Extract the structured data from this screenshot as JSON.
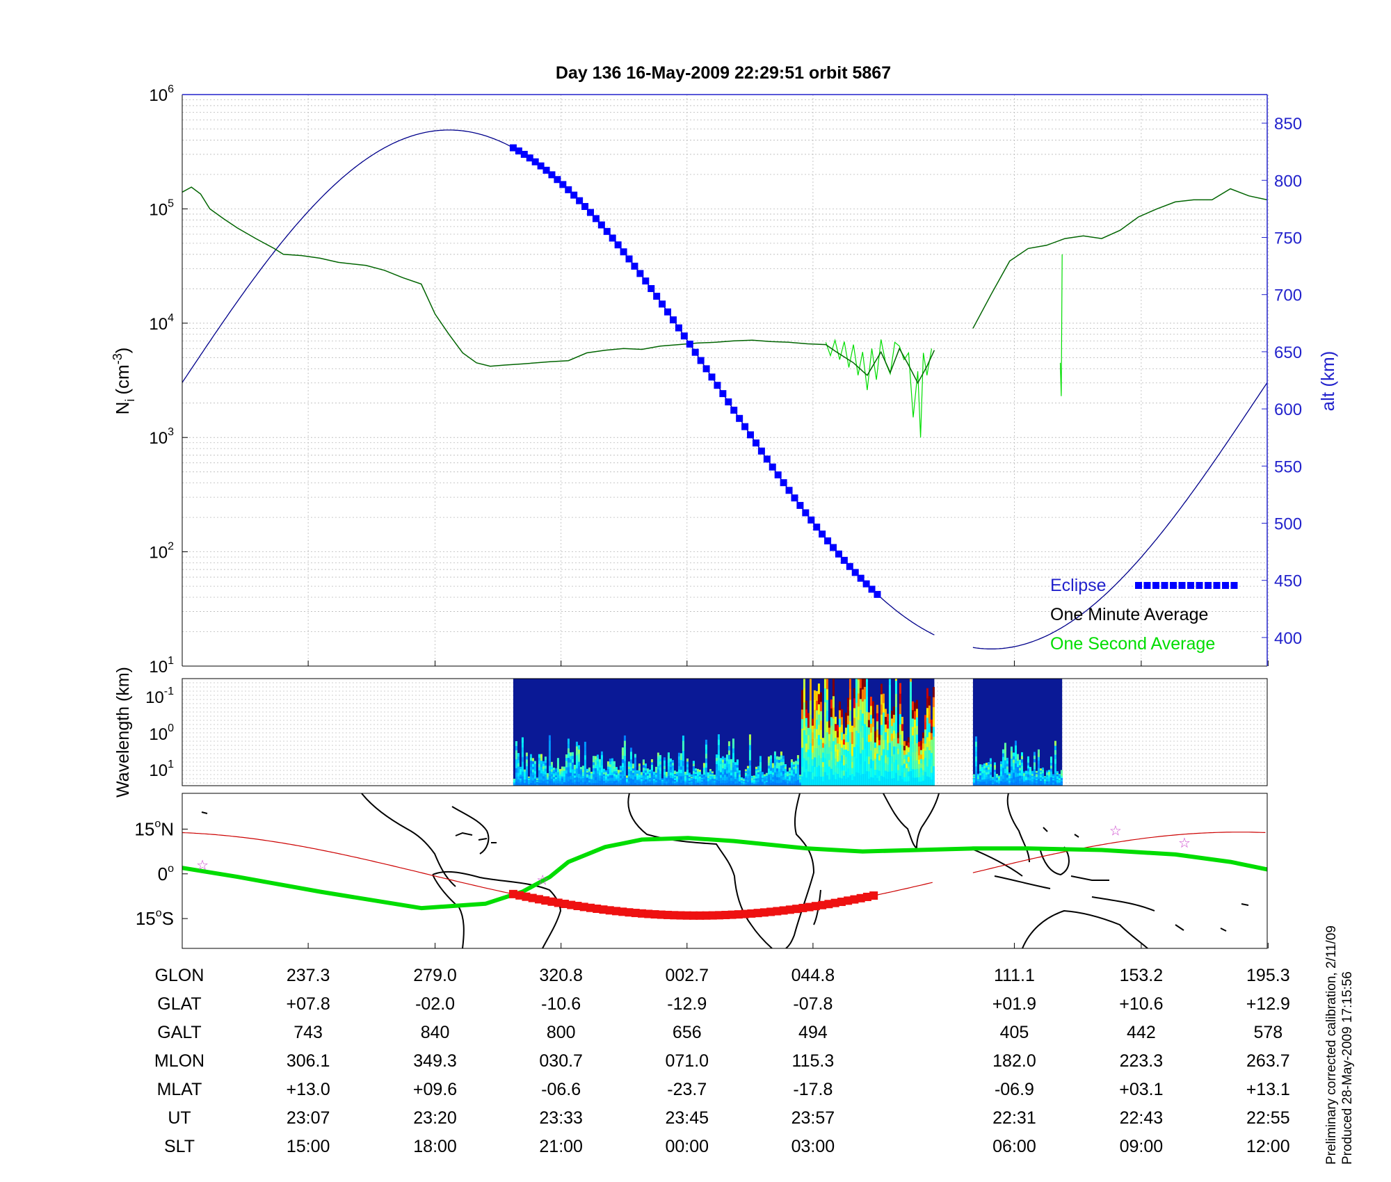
{
  "chart_data": [
    {
      "type": "line",
      "title": "Day 136  16-May-2009 22:29:51   orbit 5867",
      "ylabel_left": "N",
      "ylabel_left_sub": "i",
      "ylabel_left_unit": "(cm",
      "ylabel_left_unit_sup": "-3",
      "ylabel_left_unit_close": ")",
      "ylabel_right": "alt (km)",
      "y_scale": "log",
      "ylim": [
        10,
        1000000
      ],
      "y_ticks": [
        {
          "base": "10",
          "exp": "1",
          "value": 10
        },
        {
          "base": "10",
          "exp": "2",
          "value": 100
        },
        {
          "base": "10",
          "exp": "3",
          "value": 1000
        },
        {
          "base": "10",
          "exp": "4",
          "value": 10000
        },
        {
          "base": "10",
          "exp": "5",
          "value": 100000
        },
        {
          "base": "10",
          "exp": "6",
          "value": 1000000
        }
      ],
      "y2lim": [
        375,
        875
      ],
      "y2_ticks": [
        "400",
        "450",
        "500",
        "550",
        "600",
        "650",
        "700",
        "750",
        "800",
        "850"
      ],
      "grid": true,
      "legend_position": "bottom-right",
      "legend": [
        {
          "label": "Eclipse",
          "color": "#0000ff"
        },
        {
          "label": "One Minute Average",
          "color": "#000000"
        },
        {
          "label": "One Second Average",
          "color": "#00dd00"
        }
      ],
      "series": [
        {
          "name": "One Minute Average",
          "color": "#006400",
          "segments": [
            [
              [
                0,
                140000
              ],
              [
                10,
                155000
              ],
              [
                20,
                135000
              ],
              [
                30,
                100000
              ],
              [
                45,
                82000
              ],
              [
                60,
                68000
              ],
              [
                80,
                55000
              ],
              [
                100,
                45000
              ],
              [
                110,
                40000
              ],
              [
                130,
                39000
              ],
              [
                150,
                37000
              ],
              [
                170,
                34000
              ],
              [
                200,
                32000
              ],
              [
                220,
                29000
              ],
              [
                240,
                25000
              ],
              [
                260,
                22000
              ],
              [
                275,
                12000
              ],
              [
                290,
                8000
              ],
              [
                305,
                5500
              ],
              [
                320,
                4500
              ],
              [
                335,
                4200
              ],
              [
                350,
                4300
              ],
              [
                370,
                4400
              ],
              [
                400,
                4600
              ],
              [
                420,
                4700
              ],
              [
                440,
                5500
              ],
              [
                460,
                5800
              ],
              [
                480,
                6000
              ],
              [
                500,
                5900
              ],
              [
                520,
                6300
              ],
              [
                540,
                6500
              ],
              [
                560,
                6700
              ],
              [
                580,
                6800
              ],
              [
                600,
                7000
              ],
              [
                620,
                7100
              ],
              [
                640,
                6900
              ],
              [
                660,
                6800
              ],
              [
                680,
                6600
              ],
              [
                700,
                6500
              ],
              [
                710,
                5700
              ],
              [
                730,
                4500
              ],
              [
                745,
                3500
              ],
              [
                760,
                5600
              ],
              [
                770,
                3700
              ],
              [
                780,
                6000
              ],
              [
                790,
                4300
              ],
              [
                800,
                3000
              ],
              [
                810,
                4200
              ],
              [
                818,
                5800
              ]
            ],
            [
              [
                860,
                9000
              ],
              [
                880,
                18000
              ],
              [
                900,
                35000
              ],
              [
                920,
                45000
              ],
              [
                940,
                48000
              ],
              [
                960,
                55000
              ],
              [
                980,
                58000
              ],
              [
                1000,
                55000
              ],
              [
                1020,
                65000
              ],
              [
                1040,
                85000
              ],
              [
                1060,
                100000
              ],
              [
                1080,
                115000
              ],
              [
                1100,
                120000
              ],
              [
                1120,
                120000
              ],
              [
                1140,
                150000
              ],
              [
                1160,
                130000
              ],
              [
                1180,
                120000
              ]
            ]
          ]
        },
        {
          "name": "One Second Average",
          "color": "#00dd00",
          "segments": [
            [
              [
                700,
                6800
              ],
              [
                705,
                5200
              ],
              [
                710,
                7100
              ],
              [
                715,
                4800
              ],
              [
                720,
                6900
              ],
              [
                725,
                4100
              ],
              [
                730,
                6500
              ],
              [
                735,
                3500
              ],
              [
                740,
                5600
              ],
              [
                745,
                2600
              ],
              [
                750,
                6000
              ],
              [
                755,
                3200
              ],
              [
                760,
                7200
              ],
              [
                765,
                4500
              ],
              [
                770,
                3600
              ],
              [
                775,
                6800
              ],
              [
                780,
                6300
              ],
              [
                785,
                4800
              ],
              [
                790,
                5500
              ],
              [
                795,
                1500
              ],
              [
                800,
                3800
              ],
              [
                803,
                1000
              ],
              [
                806,
                5500
              ],
              [
                810,
                3500
              ],
              [
                815,
                6000
              ]
            ],
            [
              [
                955,
                4500
              ],
              [
                956,
                2300
              ],
              [
                957,
                40000
              ]
            ]
          ]
        },
        {
          "name": "alt (km)",
          "color": "#00008b",
          "axis": "right",
          "x_span": [
            0,
            1180
          ],
          "phase_peak_x": 290,
          "period_x": 1180,
          "alt_mid": 617,
          "alt_amp": 227,
          "gap_x": [
            818,
            860
          ]
        }
      ],
      "eclipse_x": [
        360,
        758
      ],
      "x_labels": {
        "rows": [
          "GLON",
          "GLAT",
          "GALT",
          "MLON",
          "MLAT",
          "UT",
          "SLT"
        ],
        "columns": [
          {
            "x": 137,
            "values": [
              "237.3",
              "+07.8",
              "743",
              "306.1",
              "+13.0",
              "23:07",
              "15:00"
            ]
          },
          {
            "x": 275,
            "values": [
              "279.0",
              "-02.0",
              "840",
              "349.3",
              "+09.6",
              "23:20",
              "18:00"
            ]
          },
          {
            "x": 412,
            "values": [
              "320.8",
              "-10.6",
              "800",
              "030.7",
              "-06.6",
              "23:33",
              "21:00"
            ]
          },
          {
            "x": 549,
            "values": [
              "002.7",
              "-12.9",
              "656",
              "071.0",
              "-23.7",
              "23:45",
              "00:00"
            ]
          },
          {
            "x": 686,
            "values": [
              "044.8",
              "-07.8",
              "494",
              "115.3",
              "-17.8",
              "23:57",
              "03:00"
            ]
          },
          {
            "x": 905,
            "values": [
              "111.1",
              "+01.9",
              "405",
              "182.0",
              "-06.9",
              "22:31",
              "06:00"
            ]
          },
          {
            "x": 1043,
            "values": [
              "153.2",
              "+10.6",
              "442",
              "223.3",
              "+03.1",
              "22:43",
              "09:00"
            ]
          },
          {
            "x": 1181,
            "values": [
              "195.3",
              "+12.9",
              "578",
              "263.7",
              "+13.1",
              "22:55",
              "12:00"
            ]
          }
        ]
      }
    },
    {
      "type": "heatmap",
      "ylabel": "Wavelength (km)",
      "y_scale": "log",
      "y_ticks": [
        {
          "base": "10",
          "exp": "-1"
        },
        {
          "base": "10",
          "exp": "0"
        },
        {
          "base": "10",
          "exp": "1"
        }
      ],
      "colormap": "jet",
      "data_x_ranges": [
        [
          360,
          818
        ],
        [
          860,
          957
        ]
      ],
      "intense_x_ranges": [
        [
          671,
          818
        ]
      ]
    },
    {
      "type": "map",
      "y_ticks": [
        {
          "deg": "15",
          "hemi": "N",
          "lat": 15
        },
        {
          "deg": "0",
          "hemi": "",
          "lat": 0
        },
        {
          "deg": "15",
          "hemi": "S",
          "lat": -15
        }
      ],
      "ylim": [
        -25,
        27
      ],
      "orbit_track": {
        "color": "#cc0000",
        "phase_peak_x": 1150,
        "amplitude_lat": 14,
        "period_x": 1180
      },
      "eclipse_track_x": [
        360,
        758
      ],
      "magnetic_equator": {
        "color": "#00dd00",
        "points": [
          [
            0,
            2
          ],
          [
            60,
            -1
          ],
          [
            150,
            -6
          ],
          [
            260,
            -11.5
          ],
          [
            330,
            -10
          ],
          [
            370,
            -6
          ],
          [
            400,
            -1
          ],
          [
            420,
            4
          ],
          [
            460,
            9
          ],
          [
            500,
            11.5
          ],
          [
            550,
            12
          ],
          [
            600,
            11
          ],
          [
            680,
            8.5
          ],
          [
            740,
            7.5
          ],
          [
            800,
            8
          ],
          [
            860,
            8.5
          ],
          [
            920,
            8.5
          ],
          [
            1000,
            8
          ],
          [
            1080,
            6.5
          ],
          [
            1140,
            4
          ],
          [
            1180,
            1.5
          ]
        ]
      },
      "markers": [
        [
          22,
          3
        ],
        [
          392,
          -2
        ],
        [
          1015,
          14.5
        ],
        [
          1090,
          10.5
        ]
      ],
      "marker_color": "#cc44cc"
    }
  ],
  "footer_note_line1": "Preliminary corrected calibration, 2/11/09",
  "footer_note_line2": "Produced 28-May-2009 17:15:56"
}
